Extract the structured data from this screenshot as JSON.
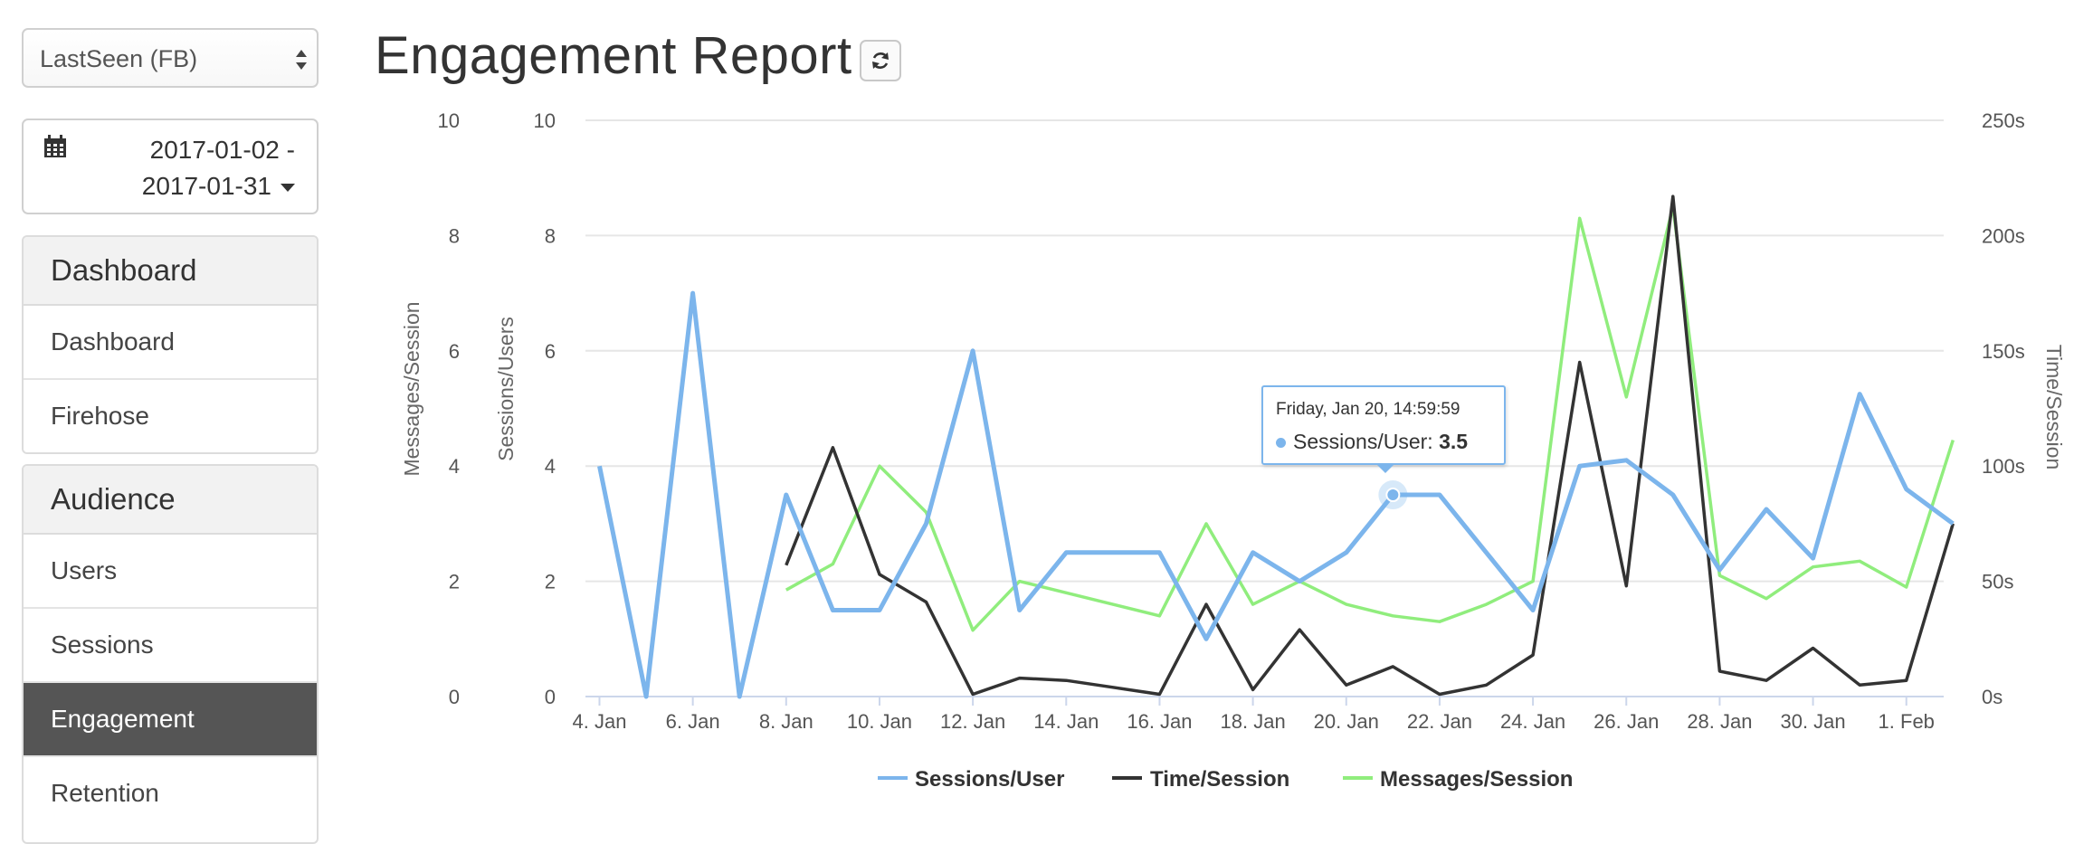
{
  "sidebar": {
    "app_select": {
      "value": "LastSeen (FB)"
    },
    "date_range": {
      "start": "2017-01-02 -",
      "end": "2017-01-31"
    },
    "groups": [
      {
        "title": "Dashboard",
        "items": [
          {
            "label": "Dashboard"
          },
          {
            "label": "Firehose"
          }
        ]
      },
      {
        "title": "Audience",
        "items": [
          {
            "label": "Users"
          },
          {
            "label": "Sessions"
          },
          {
            "label": "Engagement",
            "active": true
          },
          {
            "label": "Retention"
          }
        ]
      }
    ]
  },
  "header": {
    "title": "Engagement Report"
  },
  "tooltip": {
    "date": "Friday, Jan 20, 14:59:59",
    "series": "Sessions/User:",
    "value": "3.5"
  },
  "colors": {
    "sessions_user": "#7cb5ec",
    "time_session": "#333333",
    "messages_session": "#90ed7d",
    "active_menu": "#555555"
  },
  "chart_data": {
    "type": "line",
    "x_tick_labels": [
      "4. Jan",
      "6. Jan",
      "8. Jan",
      "10. Jan",
      "12. Jan",
      "14. Jan",
      "16. Jan",
      "18. Jan",
      "20. Jan",
      "22. Jan",
      "24. Jan",
      "26. Jan",
      "28. Jan",
      "30. Jan",
      "1. Feb"
    ],
    "x_range_days": [
      3.7,
      32.8
    ],
    "y_axes": [
      {
        "title": "Messages/Session",
        "range": [
          0,
          10
        ],
        "ticks": [
          "0",
          "2",
          "4",
          "6",
          "8",
          "10"
        ]
      },
      {
        "title": "Sessions/Users",
        "range": [
          0,
          10
        ],
        "ticks": [
          "0",
          "2",
          "4",
          "6",
          "8",
          "10"
        ]
      },
      {
        "title": "Time/Session",
        "range": [
          0,
          250
        ],
        "ticks": [
          "0s",
          "50s",
          "100s",
          "150s",
          "200s",
          "250s"
        ],
        "opposite": true
      }
    ],
    "grid": true,
    "legend": "bottom-center",
    "series": [
      {
        "name": "Sessions/User",
        "axis": 1,
        "x": [
          4,
          5,
          6,
          7,
          8,
          9,
          10,
          11,
          12,
          13,
          14,
          15,
          16,
          17,
          18,
          19,
          20,
          21,
          22,
          23,
          24,
          25,
          26,
          27,
          28,
          29,
          30,
          31,
          32,
          33
        ],
        "y": [
          4.0,
          0.0,
          7.0,
          0.0,
          3.5,
          1.5,
          1.5,
          3.0,
          6.0,
          1.5,
          2.5,
          2.5,
          2.5,
          1.0,
          2.5,
          2.0,
          2.5,
          3.5,
          3.5,
          2.5,
          1.5,
          4.0,
          4.1,
          3.5,
          2.2,
          3.25,
          2.4,
          5.25,
          3.6,
          3.0
        ]
      },
      {
        "name": "Time/Session",
        "axis": 2,
        "x": [
          8,
          9,
          10,
          11,
          12,
          13,
          14,
          15,
          16,
          17,
          18,
          19,
          20,
          21,
          22,
          23,
          24,
          25,
          26,
          27,
          28,
          29,
          30,
          31,
          32,
          33
        ],
        "y": [
          57,
          108,
          53,
          41,
          1,
          8,
          7,
          4,
          1,
          40,
          3,
          29,
          5,
          13,
          1,
          5,
          18,
          145,
          48,
          217,
          11,
          7,
          21,
          5,
          7,
          75
        ]
      },
      {
        "name": "Messages/Session",
        "axis": 0,
        "x": [
          8,
          9,
          10,
          11,
          12,
          13,
          14,
          15,
          16,
          17,
          18,
          19,
          20,
          21,
          22,
          23,
          24,
          25,
          26,
          27,
          28,
          29,
          30,
          31,
          32,
          33
        ],
        "y": [
          1.85,
          2.3,
          4.0,
          3.2,
          1.15,
          2.0,
          1.8,
          1.6,
          1.4,
          3.0,
          1.6,
          2.0,
          1.6,
          1.4,
          1.3,
          1.6,
          2.0,
          8.3,
          5.2,
          8.5,
          2.1,
          1.7,
          2.25,
          2.35,
          1.9,
          4.45
        ]
      }
    ],
    "highlight": {
      "series": "Sessions/User",
      "x": 21,
      "y": 3.5
    }
  }
}
